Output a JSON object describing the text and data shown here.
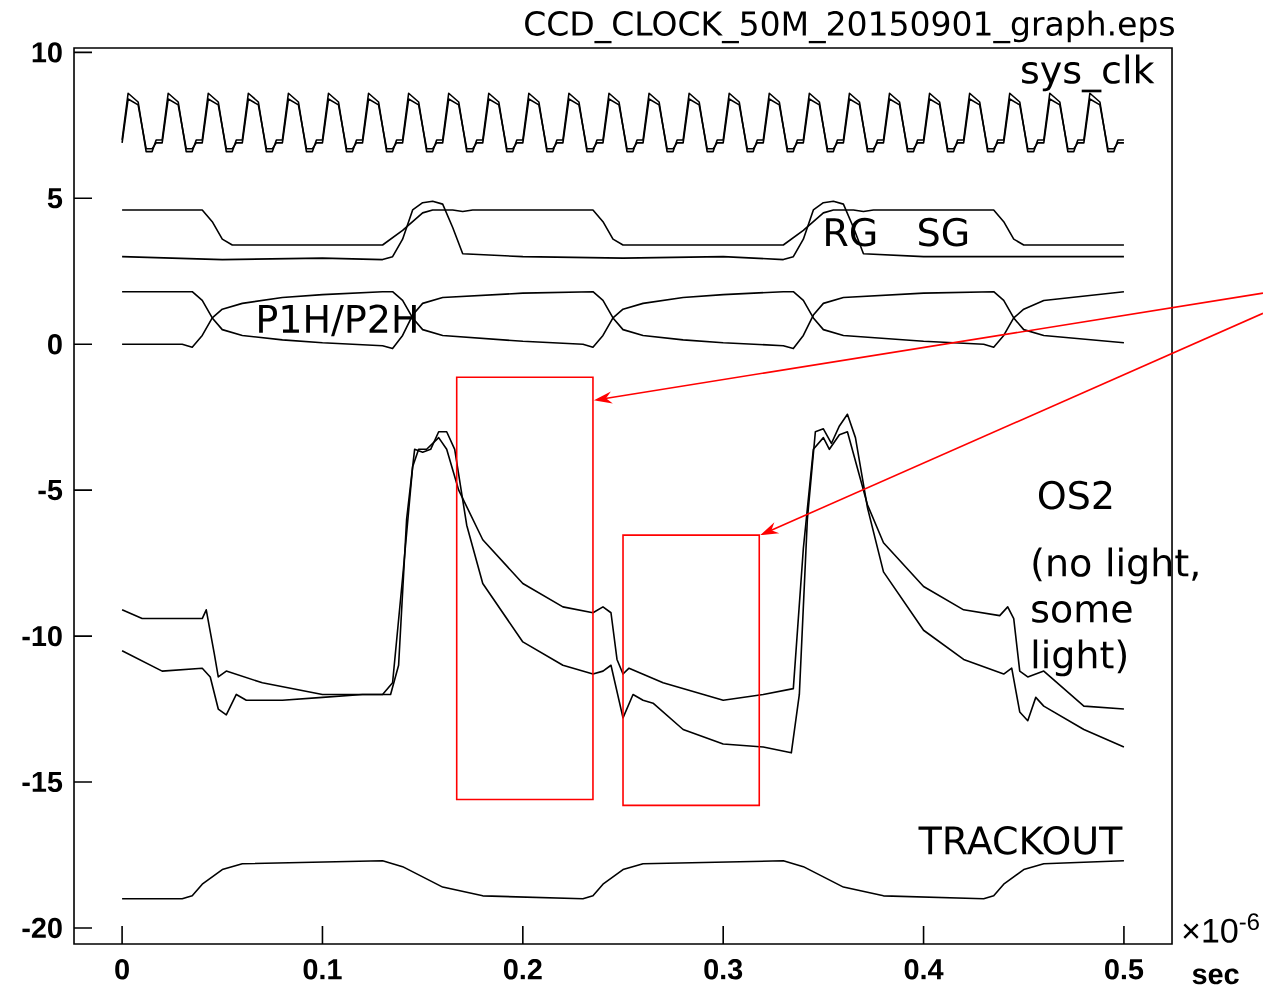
{
  "chart_data": {
    "type": "line",
    "title": "CCD_CLOCK_50M_20150901_graph.eps",
    "xlabel": "sec",
    "annotations": [
      "sys_clk",
      "RG",
      "SG",
      "P1H/P2H",
      "OS2",
      "(no light, some light)",
      "TRACKOUT",
      "×10$^{-6}$"
    ],
    "xlim": [
      -0.024,
      0.524
    ],
    "ylim": [
      -20.55,
      10.15
    ],
    "xticks": [
      0,
      0.1,
      0.2,
      0.3,
      0.4,
      0.5
    ],
    "yticks": [
      -20,
      -15,
      -10,
      -5,
      0,
      5,
      10
    ],
    "grid": false,
    "marker": "none",
    "line_style": "solid",
    "x": [
      0,
      0.003,
      0.008,
      0.012,
      0.015,
      0.017,
      0.02,
      0.023,
      0.028,
      0.032,
      0.035,
      0.037,
      0.04,
      0.043,
      0.048,
      0.052,
      0.055,
      0.057,
      0.06,
      0.063,
      0.068,
      0.072,
      0.075,
      0.077,
      0.08,
      0.083,
      0.088,
      0.092,
      0.095,
      0.097,
      0.1,
      0.103,
      0.108,
      0.112,
      0.115,
      0.117,
      0.12,
      0.123,
      0.128,
      0.132,
      0.135,
      0.137,
      0.14,
      0.143,
      0.148,
      0.152,
      0.155,
      0.157,
      0.16,
      0.163,
      0.168,
      0.172,
      0.175,
      0.177,
      0.18,
      0.183,
      0.188,
      0.192,
      0.195,
      0.197,
      0.2,
      0.203,
      0.208,
      0.212,
      0.215,
      0.217,
      0.22,
      0.223,
      0.228,
      0.232,
      0.235,
      0.237,
      0.24,
      0.243,
      0.248,
      0.252,
      0.255,
      0.257,
      0.26,
      0.263,
      0.268,
      0.272,
      0.275,
      0.277,
      0.28,
      0.283,
      0.288,
      0.292,
      0.295,
      0.297,
      0.3,
      0.303,
      0.308,
      0.312,
      0.315,
      0.317,
      0.32,
      0.323,
      0.328,
      0.332,
      0.335,
      0.337,
      0.34,
      0.343,
      0.348,
      0.352,
      0.355,
      0.357,
      0.36,
      0.363,
      0.368,
      0.372,
      0.375,
      0.377,
      0.38,
      0.383,
      0.388,
      0.392,
      0.395,
      0.397,
      0.4,
      0.403,
      0.408,
      0.412,
      0.415,
      0.417,
      0.42,
      0.423,
      0.428,
      0.432,
      0.435,
      0.437,
      0.44,
      0.443,
      0.448,
      0.452,
      0.455,
      0.457,
      0.46,
      0.463,
      0.468,
      0.472,
      0.475,
      0.477,
      0.48,
      0.483,
      0.488,
      0.492,
      0.495,
      0.497,
      0.5
    ],
    "series": [
      {
        "color": "#000000",
        "values": [
          7.0,
          8.6,
          8.3,
          6.6,
          6.6,
          7.0,
          7.0,
          8.6,
          8.3,
          6.6,
          6.6,
          7.0,
          7.0,
          8.6,
          8.3,
          6.6,
          6.6,
          7.0,
          7.0,
          8.6,
          8.3,
          6.6,
          6.6,
          7.0,
          7.0,
          8.6,
          8.3,
          6.6,
          6.6,
          7.0,
          7.0,
          8.6,
          8.3,
          6.6,
          6.6,
          7.0,
          7.0,
          8.6,
          8.3,
          6.6,
          6.6,
          7.0,
          7.0,
          8.6,
          8.3,
          6.6,
          6.6,
          7.0,
          7.0,
          8.6,
          8.3,
          6.6,
          6.6,
          7.0,
          7.0,
          8.6,
          8.3,
          6.6,
          6.6,
          7.0,
          7.0,
          8.6,
          8.3,
          6.6,
          6.6,
          7.0,
          7.0,
          8.6,
          8.3,
          6.6,
          6.6,
          7.0,
          7.0,
          8.6,
          8.3,
          6.6,
          6.6,
          7.0,
          7.0,
          8.6,
          8.3,
          6.6,
          6.6,
          7.0,
          7.0,
          8.6,
          8.3,
          6.6,
          6.6,
          7.0,
          7.0,
          8.6,
          8.3,
          6.6,
          6.6,
          7.0,
          7.0,
          8.6,
          8.3,
          6.6,
          6.6,
          7.0,
          7.0,
          8.6,
          8.3,
          6.6,
          6.6,
          7.0,
          7.0,
          8.6,
          8.3,
          6.6,
          6.6,
          7.0,
          7.0,
          8.6,
          8.3,
          6.6,
          6.6,
          7.0,
          7.0,
          8.6,
          8.3,
          6.6,
          6.6,
          7.0,
          7.0,
          8.6,
          8.3,
          6.6,
          6.6,
          7.0,
          7.0,
          8.6,
          8.3,
          6.6,
          6.6,
          7.0,
          7.0,
          8.6,
          8.3,
          6.6,
          6.6,
          7.0,
          7.0,
          8.6,
          8.3,
          6.6,
          6.6,
          7.0,
          7.0
        ]
      },
      {
        "color": "#000000",
        "values": [
          6.9,
          8.4,
          8.2,
          6.7,
          6.7,
          6.9,
          6.9,
          8.4,
          8.2,
          6.7,
          6.7,
          6.9,
          6.9,
          8.4,
          8.2,
          6.7,
          6.7,
          6.9,
          6.9,
          8.4,
          8.2,
          6.7,
          6.7,
          6.9,
          6.9,
          8.4,
          8.2,
          6.7,
          6.7,
          6.9,
          6.9,
          8.4,
          8.2,
          6.7,
          6.7,
          6.9,
          6.9,
          8.4,
          8.2,
          6.7,
          6.7,
          6.9,
          6.9,
          8.4,
          8.2,
          6.7,
          6.7,
          6.9,
          6.9,
          8.4,
          8.2,
          6.7,
          6.7,
          6.9,
          6.9,
          8.4,
          8.2,
          6.7,
          6.7,
          6.9,
          6.9,
          8.4,
          8.2,
          6.7,
          6.7,
          6.9,
          6.9,
          8.4,
          8.2,
          6.7,
          6.7,
          6.9,
          6.9,
          8.4,
          8.2,
          6.7,
          6.7,
          6.9,
          6.9,
          8.4,
          8.2,
          6.7,
          6.7,
          6.9,
          6.9,
          8.4,
          8.2,
          6.7,
          6.7,
          6.9,
          6.9,
          8.4,
          8.2,
          6.7,
          6.7,
          6.9,
          6.9,
          8.4,
          8.2,
          6.7,
          6.7,
          6.9,
          6.9,
          8.4,
          8.2,
          6.7,
          6.7,
          6.9,
          6.9,
          8.4,
          8.2,
          6.7,
          6.7,
          6.9,
          6.9,
          8.4,
          8.2,
          6.7,
          6.7,
          6.9,
          6.9,
          8.4,
          8.2,
          6.7,
          6.7,
          6.9,
          6.9,
          8.4,
          8.2,
          6.7,
          6.7,
          6.9,
          6.9,
          8.4,
          8.2,
          6.7,
          6.7,
          6.9,
          6.9,
          8.4,
          8.2,
          6.7,
          6.7,
          6.9,
          6.9,
          8.4,
          8.2,
          6.7,
          6.7,
          6.9,
          6.9
        ]
      },
      {
        "color": "#000000",
        "x": [
          0,
          0.04,
          0.045,
          0.05,
          0.055,
          0.1,
          0.13,
          0.14,
          0.15,
          0.155,
          0.16,
          0.165,
          0.17,
          0.175,
          0.2,
          0.235,
          0.24,
          0.245,
          0.25,
          0.255,
          0.3,
          0.33,
          0.34,
          0.35,
          0.355,
          0.36,
          0.365,
          0.37,
          0.375,
          0.4,
          0.435,
          0.44,
          0.445,
          0.45,
          0.455,
          0.5
        ],
        "values": [
          4.6,
          4.6,
          4.2,
          3.6,
          3.4,
          3.4,
          3.4,
          3.9,
          4.5,
          4.6,
          4.6,
          4.6,
          4.55,
          4.6,
          4.6,
          4.6,
          4.2,
          3.6,
          3.4,
          3.4,
          3.4,
          3.4,
          3.9,
          4.5,
          4.6,
          4.6,
          4.6,
          4.55,
          4.6,
          4.6,
          4.6,
          4.2,
          3.6,
          3.4,
          3.4,
          3.4
        ]
      },
      {
        "color": "#000000",
        "x": [
          0,
          0.05,
          0.1,
          0.13,
          0.135,
          0.14,
          0.145,
          0.15,
          0.155,
          0.16,
          0.165,
          0.17,
          0.2,
          0.25,
          0.3,
          0.33,
          0.335,
          0.34,
          0.345,
          0.35,
          0.355,
          0.36,
          0.365,
          0.37,
          0.4,
          0.45,
          0.5
        ],
        "values": [
          3.0,
          2.9,
          2.95,
          2.9,
          3.0,
          3.6,
          4.6,
          4.85,
          4.9,
          4.8,
          4.0,
          3.1,
          3.0,
          2.95,
          3.0,
          2.9,
          3.0,
          3.6,
          4.6,
          4.85,
          4.9,
          4.8,
          4.0,
          3.1,
          3.0,
          3.0,
          3.0
        ]
      },
      {
        "color": "#000000",
        "x": [
          0,
          0.035,
          0.04,
          0.045,
          0.05,
          0.06,
          0.08,
          0.1,
          0.13,
          0.135,
          0.14,
          0.145,
          0.15,
          0.16,
          0.2,
          0.235,
          0.24,
          0.245,
          0.25,
          0.26,
          0.28,
          0.3,
          0.33,
          0.335,
          0.34,
          0.345,
          0.35,
          0.36,
          0.4,
          0.435,
          0.44,
          0.445,
          0.45,
          0.46,
          0.5
        ],
        "values": [
          1.8,
          1.8,
          1.5,
          0.9,
          0.5,
          0.3,
          0.15,
          0.05,
          -0.05,
          -0.15,
          0.3,
          1.0,
          1.4,
          1.6,
          1.75,
          1.8,
          1.5,
          0.9,
          0.5,
          0.3,
          0.15,
          0.05,
          -0.05,
          -0.15,
          0.3,
          1.0,
          1.4,
          1.6,
          1.75,
          1.8,
          1.5,
          0.9,
          0.5,
          0.3,
          0.05
        ]
      },
      {
        "color": "#000000",
        "x": [
          0,
          0.03,
          0.035,
          0.04,
          0.045,
          0.05,
          0.06,
          0.08,
          0.1,
          0.13,
          0.135,
          0.14,
          0.145,
          0.15,
          0.16,
          0.2,
          0.23,
          0.235,
          0.24,
          0.245,
          0.25,
          0.26,
          0.28,
          0.3,
          0.33,
          0.335,
          0.34,
          0.345,
          0.35,
          0.36,
          0.4,
          0.43,
          0.435,
          0.44,
          0.445,
          0.45,
          0.46,
          0.5
        ],
        "values": [
          0,
          0,
          -0.1,
          0.3,
          0.9,
          1.2,
          1.4,
          1.6,
          1.7,
          1.8,
          1.8,
          1.5,
          0.9,
          0.5,
          0.3,
          0.1,
          0,
          -0.1,
          0.3,
          0.9,
          1.2,
          1.4,
          1.6,
          1.7,
          1.8,
          1.8,
          1.5,
          0.9,
          0.5,
          0.3,
          0.1,
          0,
          -0.1,
          0.3,
          0.9,
          1.2,
          1.5,
          1.8
        ]
      },
      {
        "color": "#000000",
        "x": [
          0,
          0.01,
          0.04,
          0.042,
          0.046,
          0.048,
          0.052,
          0.07,
          0.1,
          0.13,
          0.135,
          0.14,
          0.145,
          0.148,
          0.152,
          0.158,
          0.162,
          0.168,
          0.18,
          0.2,
          0.22,
          0.235,
          0.24,
          0.244,
          0.247,
          0.25,
          0.253,
          0.27,
          0.3,
          0.32,
          0.335,
          0.34,
          0.345,
          0.35,
          0.353,
          0.358,
          0.362,
          0.366,
          0.372,
          0.38,
          0.4,
          0.42,
          0.438,
          0.442,
          0.445,
          0.448,
          0.452,
          0.46,
          0.48,
          0.5
        ],
        "values": [
          -9.1,
          -9.4,
          -9.4,
          -9.1,
          -10.6,
          -11.4,
          -11.2,
          -11.6,
          -12.0,
          -12.0,
          -11.6,
          -8.0,
          -4.2,
          -3.6,
          -3.6,
          -3.2,
          -3.6,
          -5.0,
          -6.7,
          -8.2,
          -9.0,
          -9.2,
          -9.0,
          -9.2,
          -10.8,
          -11.3,
          -11.1,
          -11.6,
          -12.2,
          -12.0,
          -11.8,
          -7.0,
          -3.6,
          -3.2,
          -3.6,
          -3.1,
          -3.0,
          -4.0,
          -5.5,
          -6.8,
          -8.3,
          -9.1,
          -9.3,
          -9.0,
          -9.4,
          -11.2,
          -11.4,
          -11.2,
          -12.4,
          -12.5
        ]
      },
      {
        "color": "#000000",
        "x": [
          0,
          0.02,
          0.04,
          0.044,
          0.048,
          0.052,
          0.057,
          0.062,
          0.08,
          0.1,
          0.12,
          0.134,
          0.138,
          0.142,
          0.146,
          0.15,
          0.154,
          0.158,
          0.162,
          0.166,
          0.172,
          0.18,
          0.2,
          0.22,
          0.235,
          0.24,
          0.244,
          0.25,
          0.255,
          0.26,
          0.265,
          0.28,
          0.3,
          0.32,
          0.334,
          0.338,
          0.342,
          0.346,
          0.35,
          0.354,
          0.358,
          0.362,
          0.366,
          0.372,
          0.38,
          0.4,
          0.42,
          0.44,
          0.444,
          0.448,
          0.452,
          0.456,
          0.46,
          0.48,
          0.5
        ],
        "values": [
          -10.5,
          -11.2,
          -11.1,
          -11.4,
          -12.5,
          -12.7,
          -12.0,
          -12.2,
          -12.2,
          -12.1,
          -12.0,
          -12.0,
          -11.0,
          -6.0,
          -3.6,
          -3.7,
          -3.6,
          -3.0,
          -3.0,
          -3.6,
          -6.2,
          -8.2,
          -10.2,
          -11.0,
          -11.3,
          -11.2,
          -11.0,
          -12.8,
          -12.0,
          -12.2,
          -12.3,
          -13.2,
          -13.7,
          -13.8,
          -14.0,
          -12.0,
          -6.0,
          -3.0,
          -2.9,
          -3.4,
          -2.8,
          -2.4,
          -3.2,
          -5.6,
          -7.8,
          -9.8,
          -10.8,
          -11.3,
          -11.1,
          -12.6,
          -12.9,
          -12.1,
          -12.4,
          -13.2,
          -13.8
        ]
      },
      {
        "color": "#000000",
        "x": [
          0,
          0.03,
          0.035,
          0.04,
          0.05,
          0.06,
          0.13,
          0.14,
          0.16,
          0.18,
          0.23,
          0.235,
          0.24,
          0.25,
          0.26,
          0.33,
          0.34,
          0.36,
          0.38,
          0.43,
          0.435,
          0.44,
          0.45,
          0.46,
          0.5
        ],
        "values": [
          -19.0,
          -19.0,
          -18.9,
          -18.5,
          -18.0,
          -17.8,
          -17.7,
          -17.9,
          -18.6,
          -18.9,
          -19.0,
          -18.9,
          -18.5,
          -18.0,
          -17.8,
          -17.7,
          -17.9,
          -18.6,
          -18.9,
          -19.0,
          -18.9,
          -18.5,
          -18.0,
          -17.8,
          -17.7
        ]
      }
    ]
  }
}
